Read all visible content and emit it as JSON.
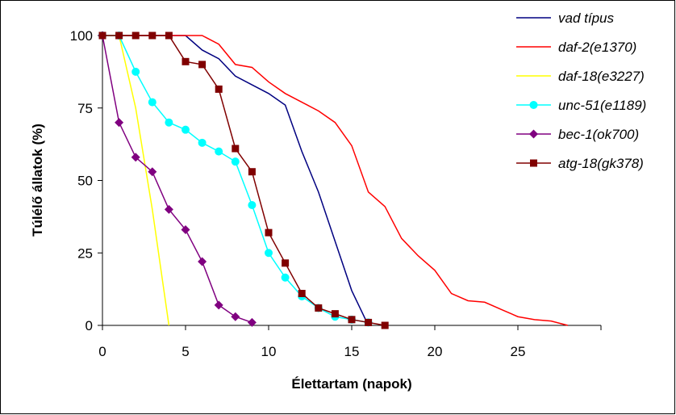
{
  "chart_data": {
    "type": "line",
    "title": "",
    "xlabel": "Élettartam (napok)",
    "ylabel": "Túlélő állatok (%)",
    "xlim": [
      0,
      30
    ],
    "ylim": [
      0,
      100
    ],
    "xticks": [
      "0",
      "5",
      "10",
      "15",
      "20",
      "25"
    ],
    "yticks": [
      "0",
      "25",
      "50",
      "75",
      "100"
    ],
    "grid": false,
    "legend_position": "right",
    "series": [
      {
        "name": "vad típus",
        "color": "#000080",
        "marker": "none",
        "x": [
          0,
          1,
          2,
          3,
          4,
          5,
          6,
          7,
          8,
          9,
          10,
          11,
          12,
          13,
          14,
          15,
          16
        ],
        "y": [
          100,
          100,
          100,
          100,
          100,
          100,
          95,
          92,
          86,
          83,
          80,
          76,
          60,
          46,
          29,
          12,
          0
        ]
      },
      {
        "name": "daf-2(e1370)",
        "color": "#ff0000",
        "marker": "none",
        "x": [
          0,
          1,
          2,
          3,
          4,
          5,
          6,
          7,
          8,
          9,
          10,
          11,
          12,
          13,
          14,
          15,
          16,
          17,
          18,
          19,
          20,
          21,
          22,
          23,
          24,
          25,
          26,
          27,
          28
        ],
        "y": [
          100,
          100,
          100,
          100,
          100,
          100,
          100,
          97,
          90,
          89,
          84,
          80,
          77,
          74,
          70,
          62,
          46,
          41,
          30,
          24,
          19,
          11,
          8.5,
          8,
          5.5,
          3,
          2,
          1.5,
          0
        ]
      },
      {
        "name": "daf-18(e3227)",
        "color": "#ffff00",
        "marker": "none",
        "x": [
          0,
          1,
          2,
          3,
          4
        ],
        "y": [
          100,
          100,
          75,
          40,
          0
        ]
      },
      {
        "name": "unc-51(e1189)",
        "color": "#00ffff",
        "marker": "circle",
        "x": [
          0,
          1,
          2,
          3,
          4,
          5,
          6,
          7,
          8,
          9,
          10,
          11,
          12,
          13,
          14,
          15,
          16
        ],
        "y": [
          100,
          100,
          87.5,
          77,
          70,
          67.5,
          63,
          60,
          56.5,
          41.5,
          25,
          16.5,
          10,
          6,
          3,
          2,
          1
        ]
      },
      {
        "name": "bec-1(ok700)",
        "color": "#800080",
        "marker": "diamond",
        "x": [
          0,
          1,
          2,
          3,
          4,
          5,
          6,
          7,
          8,
          9
        ],
        "y": [
          100,
          70,
          58,
          53,
          40,
          33,
          22,
          7,
          3,
          1
        ]
      },
      {
        "name": "atg-18(gk378)",
        "color": "#800000",
        "marker": "square",
        "x": [
          0,
          1,
          2,
          3,
          4,
          5,
          6,
          7,
          8,
          9,
          10,
          11,
          12,
          13,
          14,
          15,
          16,
          17
        ],
        "y": [
          100,
          100,
          100,
          100,
          100,
          91,
          90,
          81.5,
          61,
          53,
          32,
          21.5,
          11,
          6,
          4,
          2,
          1,
          0
        ]
      }
    ]
  }
}
